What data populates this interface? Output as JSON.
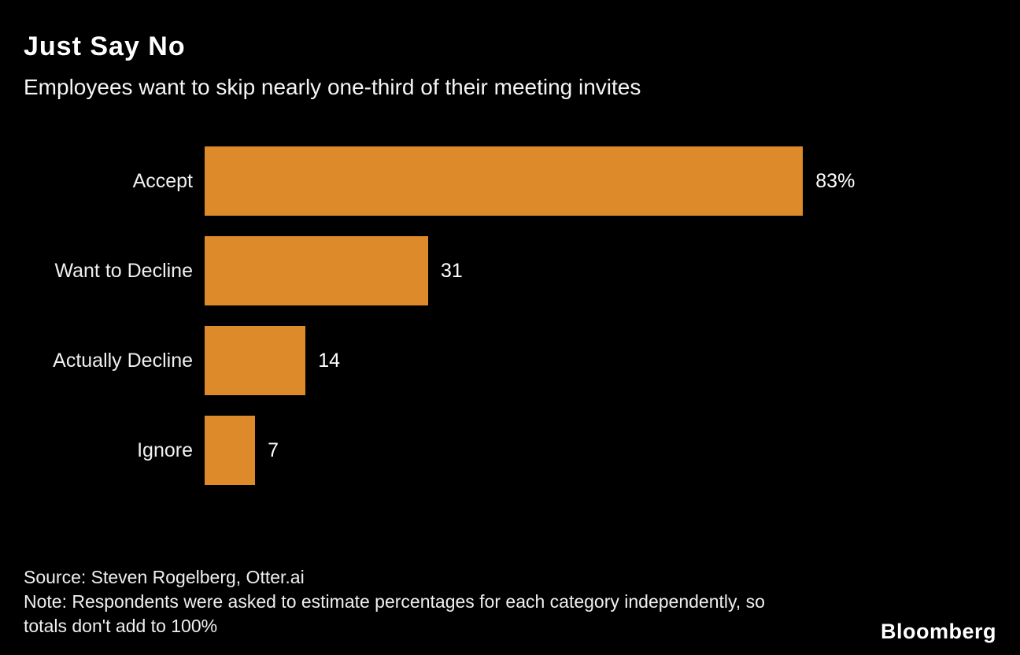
{
  "chart_data": {
    "type": "bar",
    "orientation": "horizontal",
    "title": "Just Say No",
    "subtitle": "Employees want to skip nearly one-third of their meeting invites",
    "categories": [
      "Accept",
      "Want to Decline",
      "Actually Decline",
      "Ignore"
    ],
    "values": [
      83,
      31,
      14,
      7
    ],
    "value_labels": [
      "83%",
      "31",
      "14",
      "7"
    ],
    "xlim": [
      0,
      100
    ],
    "bar_color": "#DD8A2B",
    "background_color": "#000000",
    "text_color": "#FFFFFF",
    "grid": false,
    "legend": false
  },
  "footer": {
    "source": "Source: Steven Rogelberg, Otter.ai",
    "note": "Note: Respondents were asked to estimate percentages for each category independently, so totals don't add to 100%",
    "logo": "Bloomberg"
  }
}
